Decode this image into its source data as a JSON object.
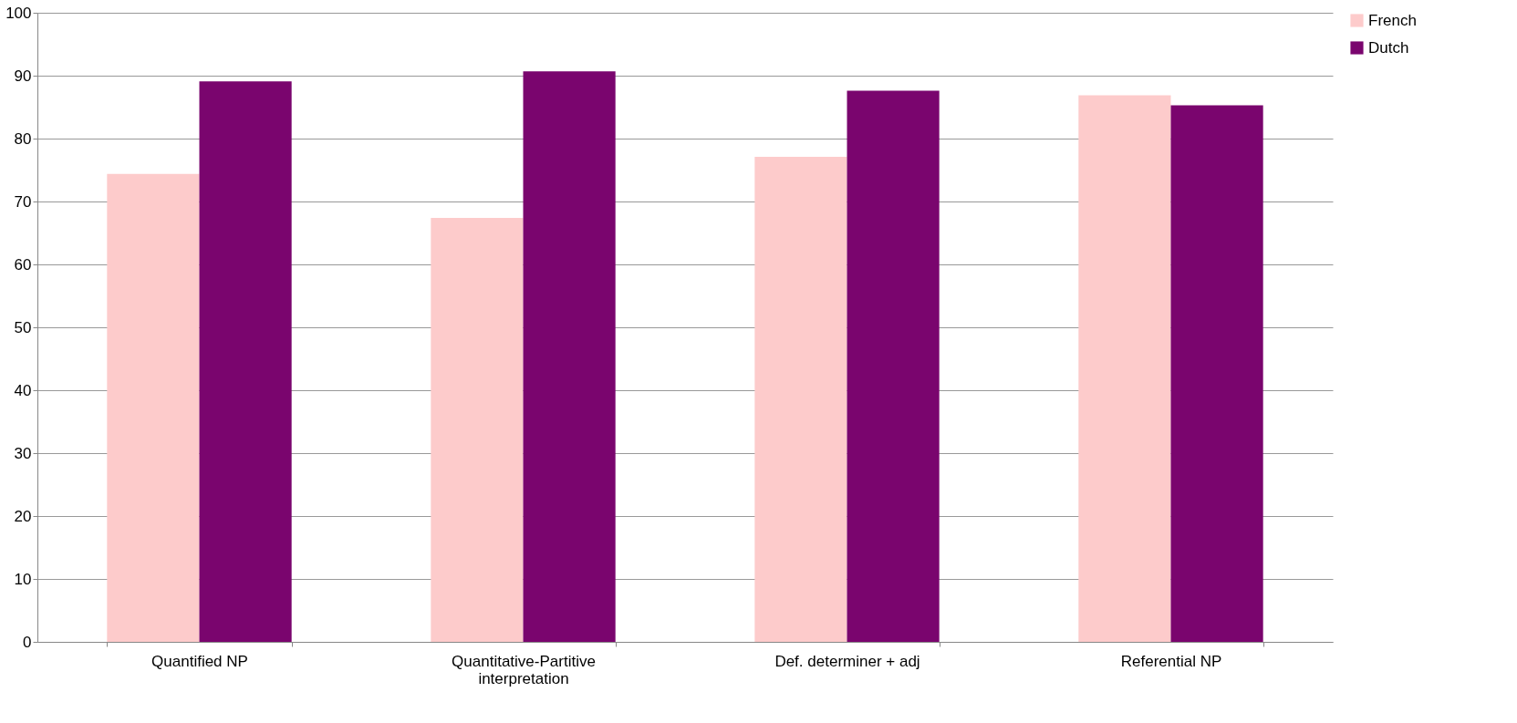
{
  "chart_data": {
    "type": "bar",
    "categories": [
      "Quantified NP",
      "Quantitative-Partitive interpretation",
      "Def. determiner + adj",
      "Referential NP"
    ],
    "series": [
      {
        "name": "French",
        "color": "#fdcbcb",
        "values": [
          74.4,
          67.4,
          77.1,
          86.9
        ]
      },
      {
        "name": "Dutch",
        "color": "#7a056e",
        "values": [
          89.1,
          90.7,
          87.6,
          85.3
        ]
      }
    ],
    "ylim": [
      0,
      100
    ],
    "yticks": [
      0,
      10,
      20,
      30,
      40,
      50,
      60,
      70,
      80,
      90,
      100
    ],
    "grid": "y",
    "legend": "right"
  }
}
